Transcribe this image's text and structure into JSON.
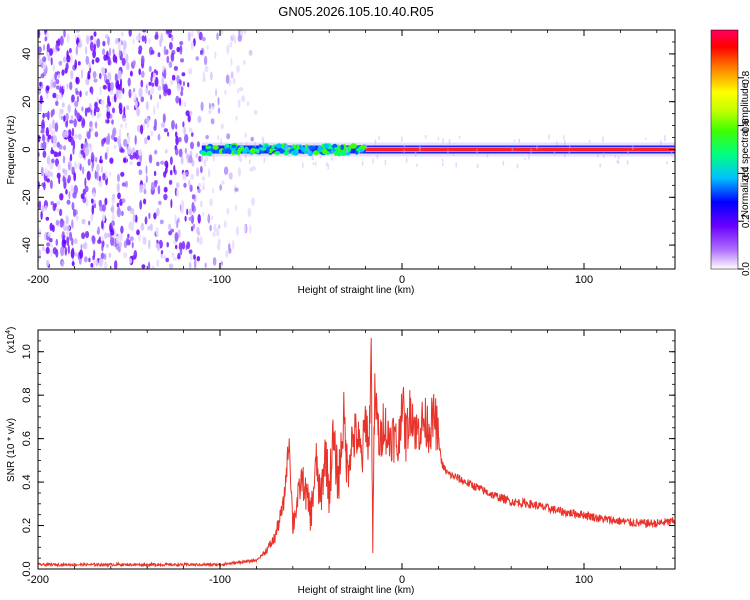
{
  "title": "GN05.2026.105.10.40.R05",
  "chart_data": [
    {
      "type": "heatmap",
      "name": "spectrogram",
      "xlabel": "Height of straight line (km)",
      "ylabel": "Frequency (Hz)",
      "xlim": [
        -200,
        150
      ],
      "ylim": [
        -50,
        50
      ],
      "x_ticks": [
        -200,
        -100,
        0,
        100
      ],
      "x_tick_labels": [
        "-200",
        "-100",
        "0",
        "100"
      ],
      "y_ticks": [
        -40,
        -20,
        0,
        20,
        40
      ],
      "y_tick_labels": [
        "-40",
        "-20",
        "0",
        "20",
        "40"
      ],
      "noise_region_x": [
        -200,
        -80
      ],
      "signal_start_x": -110,
      "signal_strong_start_x": -20,
      "signal_frequency": 0,
      "colorbar": {
        "label": "Normalized spectral amplitude",
        "range": [
          0,
          1
        ],
        "ticks": [
          0.0,
          0.2,
          0.4,
          0.6,
          0.8
        ],
        "tick_labels": [
          "0.0",
          "0.2",
          "0.4",
          "0.6",
          "0.8"
        ],
        "colors": [
          "#ffffff",
          "#b070ff",
          "#6a00ff",
          "#0000ff",
          "#00c0ff",
          "#00ff80",
          "#40ff00",
          "#c0ff00",
          "#ffff00",
          "#ff8000",
          "#ff0000",
          "#ff0060"
        ]
      }
    },
    {
      "type": "line",
      "name": "snr",
      "xlabel": "Height of straight line (km)",
      "ylabel": "SNR (10 * v/v)",
      "y_scale_label": "(x10",
      "y_scale_exp": "4",
      "y_scale_close": ")",
      "xlim": [
        -200,
        150
      ],
      "ylim": [
        0,
        1.1
      ],
      "x_ticks": [
        -200,
        -100,
        0,
        100
      ],
      "x_tick_labels": [
        "-200",
        "-100",
        "0",
        "100"
      ],
      "y_ticks": [
        0.0,
        0.2,
        0.4,
        0.6,
        0.8,
        1.0
      ],
      "y_tick_labels": [
        "0.0",
        "0.2",
        "0.4",
        "0.6",
        "0.8",
        "1.0"
      ],
      "series": [
        {
          "name": "SNR",
          "color": "#e8332a",
          "x": [
            -200,
            -180,
            -160,
            -140,
            -120,
            -100,
            -90,
            -80,
            -75,
            -70,
            -65,
            -62,
            -60,
            -55,
            -50,
            -47,
            -45,
            -42,
            -40,
            -38,
            -35,
            -32,
            -30,
            -28,
            -25,
            -22,
            -20,
            -18,
            -17,
            -16,
            -15,
            -12,
            -10,
            -8,
            -5,
            -2,
            0,
            2,
            5,
            8,
            10,
            12,
            15,
            18,
            20,
            22,
            25,
            30,
            40,
            50,
            60,
            70,
            80,
            90,
            100,
            110,
            120,
            130,
            140,
            150
          ],
          "values": [
            0.02,
            0.02,
            0.02,
            0.02,
            0.02,
            0.02,
            0.03,
            0.04,
            0.08,
            0.14,
            0.3,
            0.6,
            0.2,
            0.42,
            0.25,
            0.5,
            0.3,
            0.55,
            0.35,
            0.6,
            0.4,
            0.7,
            0.45,
            0.58,
            0.62,
            0.5,
            0.7,
            0.55,
            1.08,
            0.12,
            0.8,
            0.55,
            0.7,
            0.6,
            0.62,
            0.55,
            0.8,
            0.6,
            0.75,
            0.62,
            0.66,
            0.68,
            0.65,
            0.7,
            0.6,
            0.48,
            0.44,
            0.42,
            0.38,
            0.34,
            0.31,
            0.3,
            0.28,
            0.26,
            0.25,
            0.23,
            0.22,
            0.21,
            0.21,
            0.22
          ]
        }
      ]
    }
  ]
}
